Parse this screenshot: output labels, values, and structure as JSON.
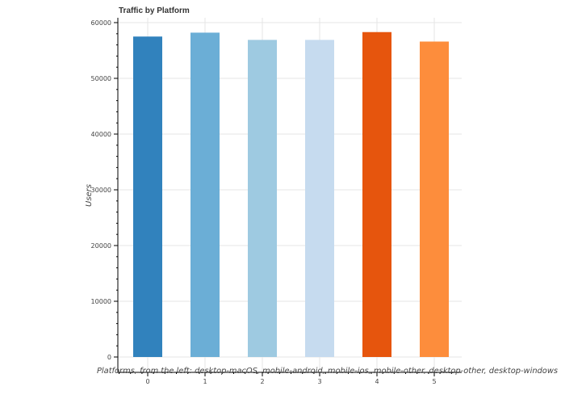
{
  "chart_data": {
    "type": "bar",
    "title": "Traffic by Platform",
    "categories": [
      "0",
      "1",
      "2",
      "3",
      "4",
      "5"
    ],
    "values": [
      57500,
      58200,
      56900,
      56900,
      58300,
      56600
    ],
    "colors": [
      "#3182bd",
      "#6baed6",
      "#9ecae1",
      "#c6dbef",
      "#e6550d",
      "#fd8d3c"
    ],
    "xlabel": "Platforms, from the left: desktop-macOS, mobile-android, mobile-ios, mobile-other, desktop-other, desktop-windows",
    "ylabel": "Users",
    "ylim": [
      0,
      60000
    ],
    "yticks": [
      0,
      10000,
      20000,
      30000,
      40000,
      50000,
      60000
    ],
    "grid": true
  }
}
